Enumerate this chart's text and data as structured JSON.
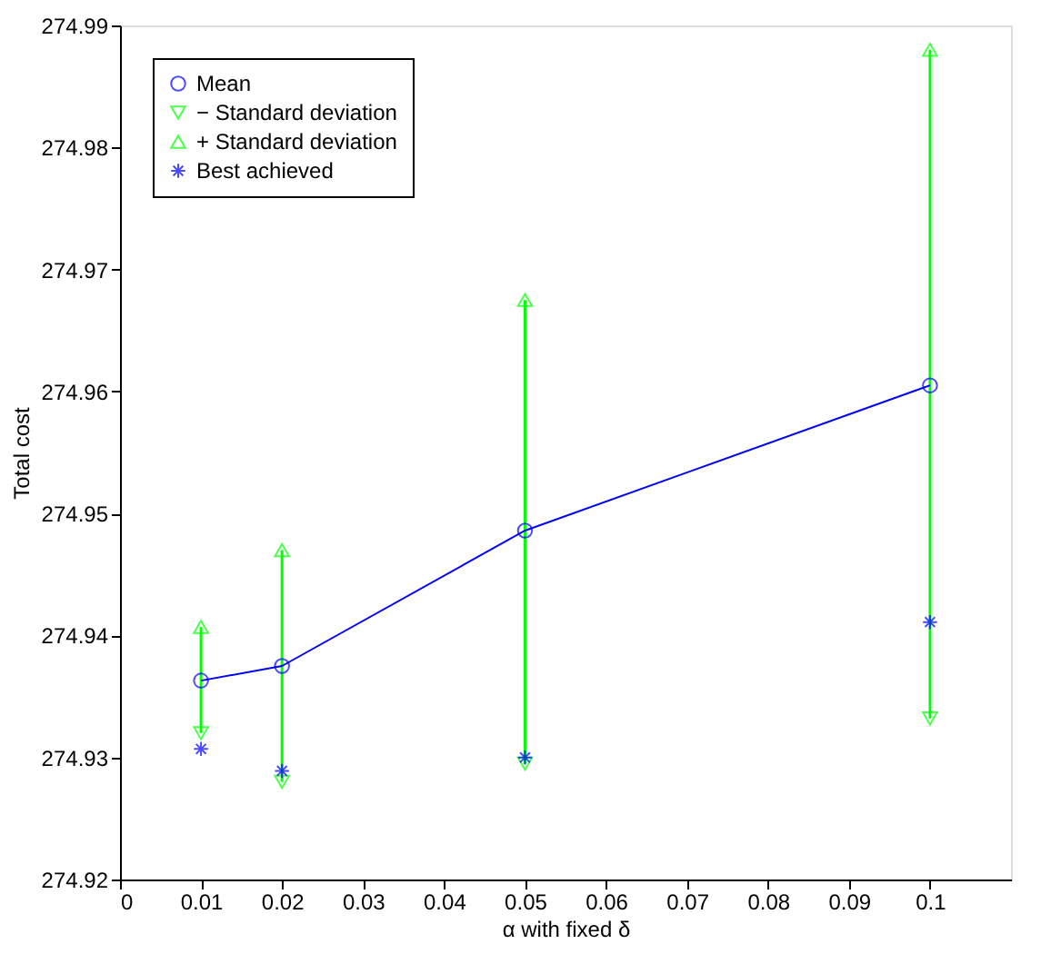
{
  "chart_data": {
    "type": "line",
    "xlabel": "α with fixed δ",
    "ylabel": "Total cost",
    "x": [
      0.01,
      0.02,
      0.05,
      0.1
    ],
    "series": [
      {
        "name": "Mean",
        "color": "#0000ff",
        "marker": "circle",
        "values": [
          274.9363,
          274.9375,
          274.9486,
          274.9605
        ],
        "errors": [
          [
            274.932,
            274.9407
          ],
          [
            274.928,
            274.947
          ],
          [
            274.9295,
            274.9675
          ],
          [
            274.9332,
            274.988
          ]
        ]
      },
      {
        "name": "− Standard deviation",
        "color": "#00ff00",
        "type": "scatter",
        "marker": "triangle-down",
        "values": [
          274.932,
          274.928,
          274.9295,
          274.9332
        ]
      },
      {
        "name": "+ Standard deviation",
        "color": "#00ff00",
        "type": "scatter",
        "marker": "triangle",
        "values": [
          274.9407,
          274.947,
          274.9675,
          274.988
        ]
      },
      {
        "name": "Best achieved",
        "color": "#0000ff",
        "type": "scatter",
        "marker": "cross",
        "values": [
          274.9307,
          274.9289,
          274.93,
          274.9411
        ]
      }
    ],
    "xlim": [
      0,
      0.11
    ],
    "xticks": [
      0,
      0.01,
      0.02,
      0.03,
      0.04,
      0.05,
      0.06,
      0.07,
      0.08,
      0.09,
      0.1
    ],
    "ylim": [
      274.92,
      274.99
    ],
    "yticks": [
      274.92,
      274.93,
      274.94,
      274.95,
      274.96,
      274.97,
      274.98,
      274.99
    ],
    "grid": false,
    "legend": "top left"
  }
}
